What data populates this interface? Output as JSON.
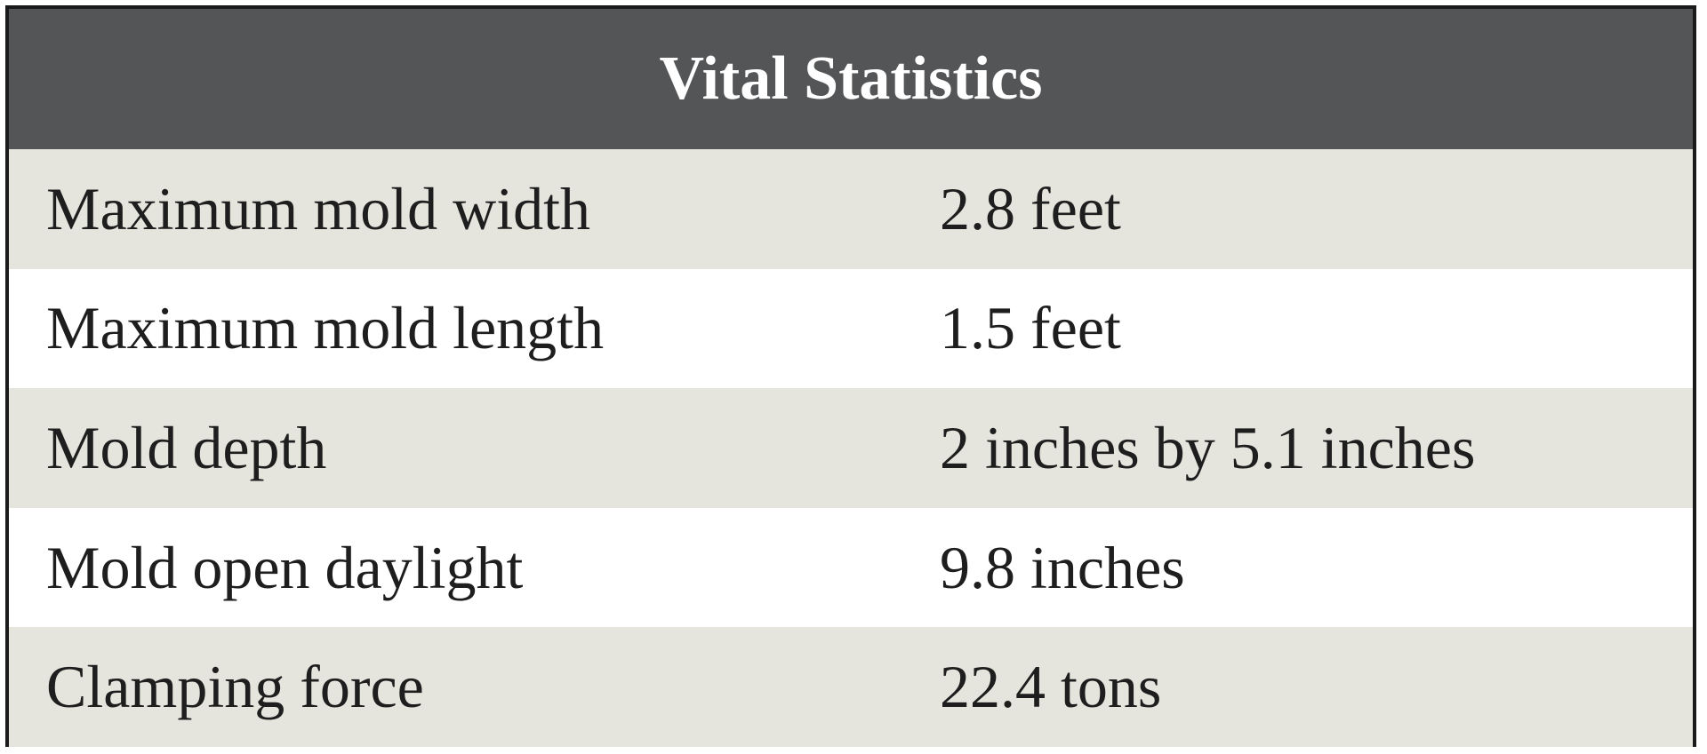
{
  "table": {
    "title": "Vital Statistics",
    "rows": [
      [
        "Maximum mold width",
        "2.8 feet"
      ],
      [
        "Maximum mold length",
        "1.5 feet"
      ],
      [
        "Mold depth",
        "2 inches by 5.1 inches"
      ],
      [
        "Mold open daylight",
        "9.8 inches"
      ],
      [
        "Clamping force",
        "22.4 tons"
      ]
    ]
  }
}
